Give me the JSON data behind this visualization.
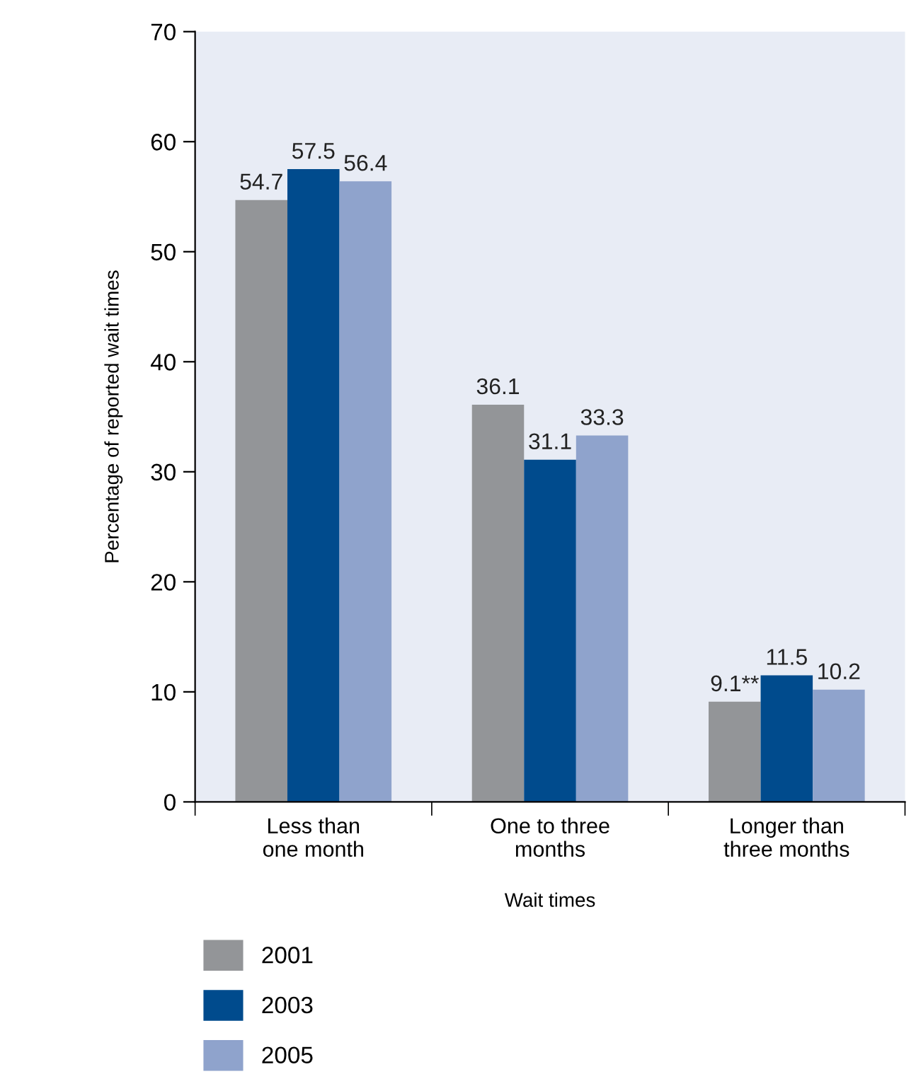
{
  "chart_data": {
    "type": "bar",
    "xlabel": "Wait times",
    "ylabel": "Percentage of reported wait times",
    "categories": [
      "Less than\none month",
      "One to three\nmonths",
      "Longer than\nthree months"
    ],
    "series": [
      {
        "name": "2001",
        "color": "#939598",
        "values": [
          54.7,
          36.1,
          9.1
        ],
        "value_labels": [
          "54.7",
          "36.1",
          "9.1**"
        ]
      },
      {
        "name": "2003",
        "color": "#004b8d",
        "values": [
          57.5,
          31.1,
          11.5
        ],
        "value_labels": [
          "57.5",
          "31.1",
          "11.5"
        ]
      },
      {
        "name": "2005",
        "color": "#8fa3cc",
        "values": [
          56.4,
          33.3,
          10.2
        ],
        "value_labels": [
          "56.4",
          "33.3",
          "10.2"
        ]
      }
    ],
    "ylim": [
      0,
      70
    ],
    "yticks": [
      0,
      10,
      20,
      30,
      40,
      50,
      60,
      70
    ],
    "grid": false,
    "legend": "bottom left"
  }
}
